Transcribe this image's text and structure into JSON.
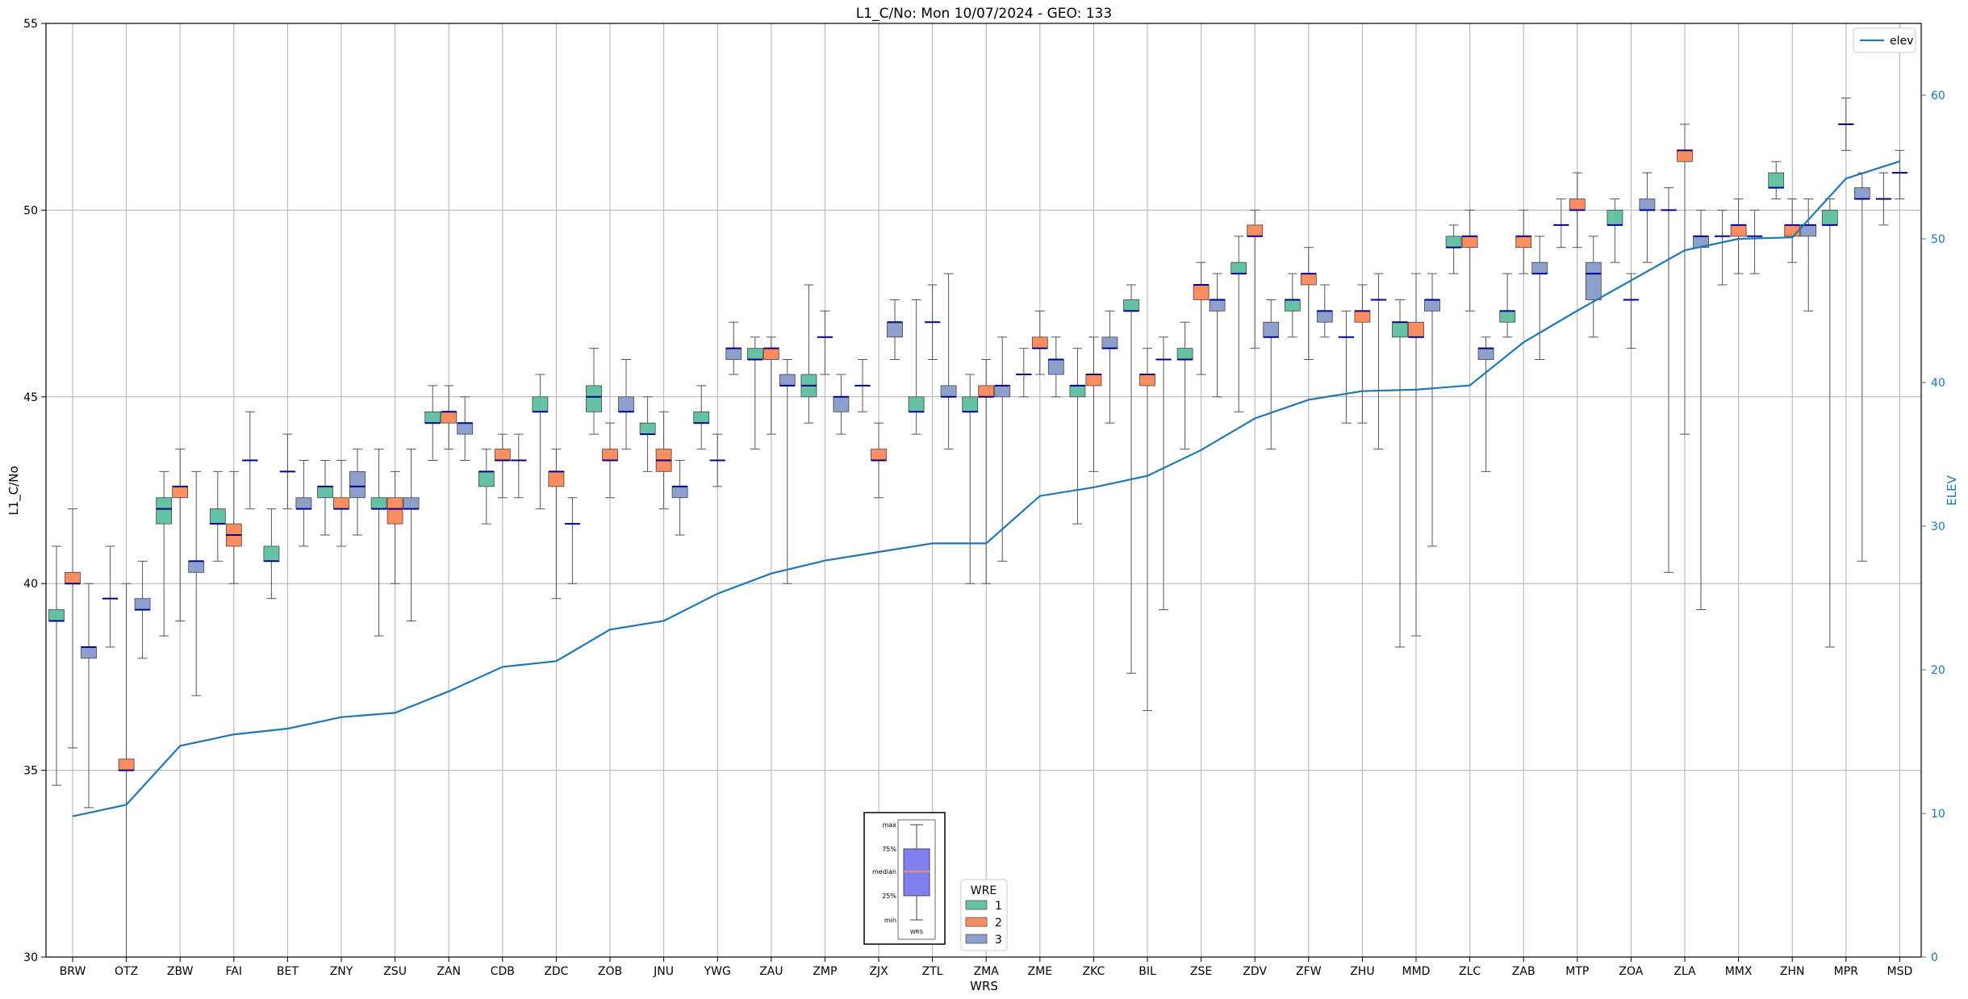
{
  "chart_data": {
    "type": "box",
    "title": "L1_C/No: Mon 10/07/2024 - GEO: 133",
    "xlabel": "WRS",
    "ylabel": "L1_C/No",
    "y2label": "ELEV",
    "ylim": [
      30,
      55
    ],
    "y2lim": [
      0,
      65
    ],
    "yticks": [
      "30",
      "35",
      "40",
      "45",
      "50",
      "55"
    ],
    "y2ticks": [
      "0",
      "10",
      "20",
      "30",
      "40",
      "50",
      "60"
    ],
    "grid": true,
    "categories": [
      "BRW",
      "OTZ",
      "ZBW",
      "FAI",
      "BET",
      "ZNY",
      "ZSU",
      "ZAN",
      "CDB",
      "ZDC",
      "ZOB",
      "JNU",
      "YWG",
      "ZAU",
      "ZMP",
      "ZJX",
      "ZTL",
      "ZMA",
      "ZME",
      "ZKC",
      "BIL",
      "ZSE",
      "ZDV",
      "ZFW",
      "ZHU",
      "MMD",
      "ZLC",
      "ZAB",
      "MTP",
      "ZOA",
      "ZLA",
      "MMX",
      "ZHN",
      "MPR",
      "MSD"
    ],
    "wre_colors": {
      "1": "#66c2a5",
      "2": "#fc8d62",
      "3": "#8da0cb"
    },
    "elev_color": "#1f77b4",
    "median_color": "#00008b",
    "legend_elev": {
      "position": "top-right",
      "label": "elev"
    },
    "legend_wre": {
      "position": "bottom-center",
      "title": "WRE",
      "labels": [
        "1",
        "2",
        "3"
      ]
    },
    "key_labels": [
      "max",
      "75%",
      "median",
      "25%",
      "min",
      "WRS"
    ],
    "elev": [
      9.8,
      10.6,
      14.7,
      15.5,
      15.9,
      16.7,
      17.0,
      18.5,
      20.2,
      20.6,
      22.8,
      23.4,
      25.3,
      26.7,
      27.6,
      28.2,
      28.8,
      28.8,
      32.1,
      32.7,
      33.5,
      35.3,
      37.5,
      38.8,
      39.4,
      39.5,
      39.8,
      42.8,
      45.0,
      47.1,
      49.2,
      50.0,
      50.1,
      54.2,
      55.4
    ],
    "boxes": [
      {
        "wrs": "BRW",
        "wre": 1,
        "min": 34.6,
        "q1": 39.0,
        "median": 39.0,
        "q3": 39.3,
        "max": 41.0
      },
      {
        "wrs": "BRW",
        "wre": 2,
        "min": 35.6,
        "q1": 40.0,
        "median": 40.0,
        "q3": 40.3,
        "max": 42.0
      },
      {
        "wrs": "BRW",
        "wre": 3,
        "min": 34.0,
        "q1": 38.0,
        "median": 38.3,
        "q3": 38.3,
        "max": 40.0
      },
      {
        "wrs": "OTZ",
        "wre": 1,
        "min": 38.3,
        "q1": 39.6,
        "median": 39.6,
        "q3": 39.6,
        "max": 41.0
      },
      {
        "wrs": "OTZ",
        "wre": 2,
        "min": 30.0,
        "q1": 35.0,
        "median": 35.0,
        "q3": 35.3,
        "max": 40.0
      },
      {
        "wrs": "OTZ",
        "wre": 3,
        "min": 38.0,
        "q1": 39.3,
        "median": 39.3,
        "q3": 39.6,
        "max": 40.6
      },
      {
        "wrs": "ZBW",
        "wre": 1,
        "min": 38.6,
        "q1": 41.6,
        "median": 42.0,
        "q3": 42.3,
        "max": 43.0
      },
      {
        "wrs": "ZBW",
        "wre": 2,
        "min": 39.0,
        "q1": 42.3,
        "median": 42.6,
        "q3": 42.6,
        "max": 43.6
      },
      {
        "wrs": "ZBW",
        "wre": 3,
        "min": 37.0,
        "q1": 40.3,
        "median": 40.6,
        "q3": 40.6,
        "max": 43.0
      },
      {
        "wrs": "FAI",
        "wre": 1,
        "min": 40.6,
        "q1": 41.6,
        "median": 41.6,
        "q3": 42.0,
        "max": 43.0
      },
      {
        "wrs": "FAI",
        "wre": 2,
        "min": 40.0,
        "q1": 41.0,
        "median": 41.3,
        "q3": 41.6,
        "max": 43.0
      },
      {
        "wrs": "FAI",
        "wre": 3,
        "min": 42.0,
        "q1": 43.3,
        "median": 43.3,
        "q3": 43.3,
        "max": 44.6
      },
      {
        "wrs": "BET",
        "wre": 1,
        "min": 39.6,
        "q1": 40.6,
        "median": 40.6,
        "q3": 41.0,
        "max": 42.0
      },
      {
        "wrs": "BET",
        "wre": 2,
        "min": 42.0,
        "q1": 43.0,
        "median": 43.0,
        "q3": 43.0,
        "max": 44.0
      },
      {
        "wrs": "BET",
        "wre": 3,
        "min": 41.0,
        "q1": 42.0,
        "median": 42.0,
        "q3": 42.3,
        "max": 43.3
      },
      {
        "wrs": "ZNY",
        "wre": 1,
        "min": 41.3,
        "q1": 42.3,
        "median": 42.6,
        "q3": 42.6,
        "max": 43.3
      },
      {
        "wrs": "ZNY",
        "wre": 2,
        "min": 41.0,
        "q1": 42.0,
        "median": 42.0,
        "q3": 42.3,
        "max": 43.3
      },
      {
        "wrs": "ZNY",
        "wre": 3,
        "min": 41.3,
        "q1": 42.3,
        "median": 42.6,
        "q3": 43.0,
        "max": 43.6
      },
      {
        "wrs": "ZSU",
        "wre": 1,
        "min": 38.6,
        "q1": 42.0,
        "median": 42.0,
        "q3": 42.3,
        "max": 43.6
      },
      {
        "wrs": "ZSU",
        "wre": 2,
        "min": 40.0,
        "q1": 41.6,
        "median": 42.0,
        "q3": 42.3,
        "max": 43.0
      },
      {
        "wrs": "ZSU",
        "wre": 3,
        "min": 39.0,
        "q1": 42.0,
        "median": 42.0,
        "q3": 42.3,
        "max": 43.6
      },
      {
        "wrs": "ZAN",
        "wre": 1,
        "min": 43.3,
        "q1": 44.3,
        "median": 44.3,
        "q3": 44.6,
        "max": 45.3
      },
      {
        "wrs": "ZAN",
        "wre": 2,
        "min": 43.6,
        "q1": 44.3,
        "median": 44.6,
        "q3": 44.6,
        "max": 45.3
      },
      {
        "wrs": "ZAN",
        "wre": 3,
        "min": 43.3,
        "q1": 44.0,
        "median": 44.3,
        "q3": 44.3,
        "max": 45.0
      },
      {
        "wrs": "CDB",
        "wre": 1,
        "min": 41.6,
        "q1": 42.6,
        "median": 43.0,
        "q3": 43.0,
        "max": 43.6
      },
      {
        "wrs": "CDB",
        "wre": 2,
        "min": 42.3,
        "q1": 43.3,
        "median": 43.3,
        "q3": 43.6,
        "max": 44.0
      },
      {
        "wrs": "CDB",
        "wre": 3,
        "min": 42.3,
        "q1": 43.3,
        "median": 43.3,
        "q3": 43.3,
        "max": 44.0
      },
      {
        "wrs": "ZDC",
        "wre": 1,
        "min": 42.0,
        "q1": 44.6,
        "median": 44.6,
        "q3": 45.0,
        "max": 45.6
      },
      {
        "wrs": "ZDC",
        "wre": 2,
        "min": 39.6,
        "q1": 42.6,
        "median": 43.0,
        "q3": 43.0,
        "max": 43.6
      },
      {
        "wrs": "ZDC",
        "wre": 3,
        "min": 40.0,
        "q1": 41.6,
        "median": 41.6,
        "q3": 41.6,
        "max": 42.3
      },
      {
        "wrs": "ZOB",
        "wre": 1,
        "min": 44.0,
        "q1": 44.6,
        "median": 45.0,
        "q3": 45.3,
        "max": 46.3
      },
      {
        "wrs": "ZOB",
        "wre": 2,
        "min": 42.3,
        "q1": 43.3,
        "median": 43.3,
        "q3": 43.6,
        "max": 44.3
      },
      {
        "wrs": "ZOB",
        "wre": 3,
        "min": 43.6,
        "q1": 44.6,
        "median": 44.6,
        "q3": 45.0,
        "max": 46.0
      },
      {
        "wrs": "JNU",
        "wre": 1,
        "min": 43.0,
        "q1": 44.0,
        "median": 44.0,
        "q3": 44.3,
        "max": 45.0
      },
      {
        "wrs": "JNU",
        "wre": 2,
        "min": 42.0,
        "q1": 43.0,
        "median": 43.3,
        "q3": 43.6,
        "max": 44.6
      },
      {
        "wrs": "JNU",
        "wre": 3,
        "min": 41.3,
        "q1": 42.3,
        "median": 42.6,
        "q3": 42.6,
        "max": 43.3
      },
      {
        "wrs": "YWG",
        "wre": 1,
        "min": 43.6,
        "q1": 44.3,
        "median": 44.3,
        "q3": 44.6,
        "max": 45.3
      },
      {
        "wrs": "YWG",
        "wre": 2,
        "min": 42.6,
        "q1": 43.3,
        "median": 43.3,
        "q3": 43.3,
        "max": 44.0
      },
      {
        "wrs": "YWG",
        "wre": 3,
        "min": 45.6,
        "q1": 46.0,
        "median": 46.3,
        "q3": 46.3,
        "max": 47.0
      },
      {
        "wrs": "ZAU",
        "wre": 1,
        "min": 43.6,
        "q1": 46.0,
        "median": 46.0,
        "q3": 46.3,
        "max": 46.6
      },
      {
        "wrs": "ZAU",
        "wre": 2,
        "min": 44.0,
        "q1": 46.0,
        "median": 46.3,
        "q3": 46.3,
        "max": 46.6
      },
      {
        "wrs": "ZAU",
        "wre": 3,
        "min": 40.0,
        "q1": 45.3,
        "median": 45.3,
        "q3": 45.6,
        "max": 46.0
      },
      {
        "wrs": "ZMP",
        "wre": 1,
        "min": 44.3,
        "q1": 45.0,
        "median": 45.3,
        "q3": 45.6,
        "max": 48.0
      },
      {
        "wrs": "ZMP",
        "wre": 2,
        "min": 45.6,
        "q1": 46.6,
        "median": 46.6,
        "q3": 46.6,
        "max": 47.3
      },
      {
        "wrs": "ZMP",
        "wre": 3,
        "min": 44.0,
        "q1": 44.6,
        "median": 45.0,
        "q3": 45.0,
        "max": 45.6
      },
      {
        "wrs": "ZJX",
        "wre": 1,
        "min": 44.6,
        "q1": 45.3,
        "median": 45.3,
        "q3": 45.3,
        "max": 46.0
      },
      {
        "wrs": "ZJX",
        "wre": 2,
        "min": 42.3,
        "q1": 43.3,
        "median": 43.3,
        "q3": 43.6,
        "max": 44.3
      },
      {
        "wrs": "ZJX",
        "wre": 3,
        "min": 46.0,
        "q1": 46.6,
        "median": 47.0,
        "q3": 47.0,
        "max": 47.6
      },
      {
        "wrs": "ZTL",
        "wre": 1,
        "min": 44.0,
        "q1": 44.6,
        "median": 44.6,
        "q3": 45.0,
        "max": 47.6
      },
      {
        "wrs": "ZTL",
        "wre": 2,
        "min": 46.0,
        "q1": 47.0,
        "median": 47.0,
        "q3": 47.0,
        "max": 48.0
      },
      {
        "wrs": "ZTL",
        "wre": 3,
        "min": 43.6,
        "q1": 45.0,
        "median": 45.0,
        "q3": 45.3,
        "max": 48.3
      },
      {
        "wrs": "ZMA",
        "wre": 1,
        "min": 40.0,
        "q1": 44.6,
        "median": 44.6,
        "q3": 45.0,
        "max": 45.6
      },
      {
        "wrs": "ZMA",
        "wre": 2,
        "min": 40.0,
        "q1": 45.0,
        "median": 45.0,
        "q3": 45.3,
        "max": 46.0
      },
      {
        "wrs": "ZMA",
        "wre": 3,
        "min": 40.6,
        "q1": 45.0,
        "median": 45.3,
        "q3": 45.3,
        "max": 46.6
      },
      {
        "wrs": "ZME",
        "wre": 1,
        "min": 45.0,
        "q1": 45.6,
        "median": 45.6,
        "q3": 45.6,
        "max": 46.3
      },
      {
        "wrs": "ZME",
        "wre": 2,
        "min": 45.6,
        "q1": 46.3,
        "median": 46.3,
        "q3": 46.6,
        "max": 47.3
      },
      {
        "wrs": "ZME",
        "wre": 3,
        "min": 45.0,
        "q1": 45.6,
        "median": 46.0,
        "q3": 46.0,
        "max": 46.6
      },
      {
        "wrs": "ZKC",
        "wre": 1,
        "min": 41.6,
        "q1": 45.0,
        "median": 45.3,
        "q3": 45.3,
        "max": 46.3
      },
      {
        "wrs": "ZKC",
        "wre": 2,
        "min": 43.0,
        "q1": 45.3,
        "median": 45.6,
        "q3": 45.6,
        "max": 46.6
      },
      {
        "wrs": "ZKC",
        "wre": 3,
        "min": 44.3,
        "q1": 46.3,
        "median": 46.3,
        "q3": 46.6,
        "max": 47.3
      },
      {
        "wrs": "BIL",
        "wre": 1,
        "min": 37.6,
        "q1": 47.3,
        "median": 47.3,
        "q3": 47.6,
        "max": 48.0
      },
      {
        "wrs": "BIL",
        "wre": 2,
        "min": 36.6,
        "q1": 45.3,
        "median": 45.6,
        "q3": 45.6,
        "max": 46.3
      },
      {
        "wrs": "BIL",
        "wre": 3,
        "min": 39.3,
        "q1": 46.0,
        "median": 46.0,
        "q3": 46.0,
        "max": 46.6
      },
      {
        "wrs": "ZSE",
        "wre": 1,
        "min": 43.6,
        "q1": 46.0,
        "median": 46.0,
        "q3": 46.3,
        "max": 47.0
      },
      {
        "wrs": "ZSE",
        "wre": 2,
        "min": 45.6,
        "q1": 47.6,
        "median": 48.0,
        "q3": 48.0,
        "max": 48.6
      },
      {
        "wrs": "ZSE",
        "wre": 3,
        "min": 45.0,
        "q1": 47.3,
        "median": 47.6,
        "q3": 47.6,
        "max": 48.3
      },
      {
        "wrs": "ZDV",
        "wre": 1,
        "min": 44.6,
        "q1": 48.3,
        "median": 48.3,
        "q3": 48.6,
        "max": 49.3
      },
      {
        "wrs": "ZDV",
        "wre": 2,
        "min": 46.3,
        "q1": 49.3,
        "median": 49.3,
        "q3": 49.6,
        "max": 50.0
      },
      {
        "wrs": "ZDV",
        "wre": 3,
        "min": 43.6,
        "q1": 46.6,
        "median": 46.6,
        "q3": 47.0,
        "max": 47.6
      },
      {
        "wrs": "ZFW",
        "wre": 1,
        "min": 46.6,
        "q1": 47.3,
        "median": 47.6,
        "q3": 47.6,
        "max": 48.3
      },
      {
        "wrs": "ZFW",
        "wre": 2,
        "min": 46.0,
        "q1": 48.0,
        "median": 48.3,
        "q3": 48.3,
        "max": 49.0
      },
      {
        "wrs": "ZFW",
        "wre": 3,
        "min": 46.6,
        "q1": 47.0,
        "median": 47.3,
        "q3": 47.3,
        "max": 48.0
      },
      {
        "wrs": "ZHU",
        "wre": 1,
        "min": 44.3,
        "q1": 46.6,
        "median": 46.6,
        "q3": 46.6,
        "max": 47.3
      },
      {
        "wrs": "ZHU",
        "wre": 2,
        "min": 44.3,
        "q1": 47.0,
        "median": 47.3,
        "q3": 47.3,
        "max": 48.0
      },
      {
        "wrs": "ZHU",
        "wre": 3,
        "min": 43.6,
        "q1": 47.6,
        "median": 47.6,
        "q3": 47.6,
        "max": 48.3
      },
      {
        "wrs": "MMD",
        "wre": 1,
        "min": 38.3,
        "q1": 46.6,
        "median": 47.0,
        "q3": 47.0,
        "max": 47.6
      },
      {
        "wrs": "MMD",
        "wre": 2,
        "min": 38.6,
        "q1": 46.6,
        "median": 46.6,
        "q3": 47.0,
        "max": 48.3
      },
      {
        "wrs": "MMD",
        "wre": 3,
        "min": 41.0,
        "q1": 47.3,
        "median": 47.6,
        "q3": 47.6,
        "max": 48.3
      },
      {
        "wrs": "ZLC",
        "wre": 1,
        "min": 48.3,
        "q1": 49.0,
        "median": 49.0,
        "q3": 49.3,
        "max": 49.6
      },
      {
        "wrs": "ZLC",
        "wre": 2,
        "min": 47.3,
        "q1": 49.0,
        "median": 49.3,
        "q3": 49.3,
        "max": 50.0
      },
      {
        "wrs": "ZLC",
        "wre": 3,
        "min": 43.0,
        "q1": 46.0,
        "median": 46.3,
        "q3": 46.3,
        "max": 46.6
      },
      {
        "wrs": "ZAB",
        "wre": 1,
        "min": 46.6,
        "q1": 47.0,
        "median": 47.3,
        "q3": 47.3,
        "max": 48.3
      },
      {
        "wrs": "ZAB",
        "wre": 2,
        "min": 48.3,
        "q1": 49.0,
        "median": 49.3,
        "q3": 49.3,
        "max": 50.0
      },
      {
        "wrs": "ZAB",
        "wre": 3,
        "min": 46.0,
        "q1": 48.3,
        "median": 48.3,
        "q3": 48.6,
        "max": 49.3
      },
      {
        "wrs": "MTP",
        "wre": 1,
        "min": 49.0,
        "q1": 49.6,
        "median": 49.6,
        "q3": 49.6,
        "max": 50.3
      },
      {
        "wrs": "MTP",
        "wre": 2,
        "min": 49.0,
        "q1": 50.0,
        "median": 50.0,
        "q3": 50.3,
        "max": 51.0
      },
      {
        "wrs": "MTP",
        "wre": 3,
        "min": 46.6,
        "q1": 47.6,
        "median": 48.3,
        "q3": 48.6,
        "max": 49.3
      },
      {
        "wrs": "ZOA",
        "wre": 1,
        "min": 48.6,
        "q1": 49.6,
        "median": 49.6,
        "q3": 50.0,
        "max": 50.3
      },
      {
        "wrs": "ZOA",
        "wre": 2,
        "min": 46.3,
        "q1": 47.6,
        "median": 47.6,
        "q3": 47.6,
        "max": 48.3
      },
      {
        "wrs": "ZOA",
        "wre": 3,
        "min": 48.6,
        "q1": 50.0,
        "median": 50.0,
        "q3": 50.3,
        "max": 51.0
      },
      {
        "wrs": "ZLA",
        "wre": 1,
        "min": 40.3,
        "q1": 50.0,
        "median": 50.0,
        "q3": 50.0,
        "max": 50.6
      },
      {
        "wrs": "ZLA",
        "wre": 2,
        "min": 44.0,
        "q1": 51.3,
        "median": 51.6,
        "q3": 51.6,
        "max": 52.3
      },
      {
        "wrs": "ZLA",
        "wre": 3,
        "min": 39.3,
        "q1": 49.0,
        "median": 49.3,
        "q3": 49.3,
        "max": 50.0
      },
      {
        "wrs": "MMX",
        "wre": 1,
        "min": 48.0,
        "q1": 49.3,
        "median": 49.3,
        "q3": 49.3,
        "max": 50.0
      },
      {
        "wrs": "MMX",
        "wre": 2,
        "min": 48.3,
        "q1": 49.3,
        "median": 49.6,
        "q3": 49.6,
        "max": 50.3
      },
      {
        "wrs": "MMX",
        "wre": 3,
        "min": 48.3,
        "q1": 49.3,
        "median": 49.3,
        "q3": 49.3,
        "max": 50.0
      },
      {
        "wrs": "ZHN",
        "wre": 1,
        "min": 50.3,
        "q1": 50.6,
        "median": 50.6,
        "q3": 51.0,
        "max": 51.3
      },
      {
        "wrs": "ZHN",
        "wre": 2,
        "min": 48.6,
        "q1": 49.3,
        "median": 49.6,
        "q3": 49.6,
        "max": 50.3
      },
      {
        "wrs": "ZHN",
        "wre": 3,
        "min": 47.3,
        "q1": 49.3,
        "median": 49.6,
        "q3": 49.6,
        "max": 50.3
      },
      {
        "wrs": "MPR",
        "wre": 1,
        "min": 38.3,
        "q1": 49.6,
        "median": 49.6,
        "q3": 50.0,
        "max": 50.3
      },
      {
        "wrs": "MPR",
        "wre": 2,
        "min": 51.6,
        "q1": 52.3,
        "median": 52.3,
        "q3": 52.3,
        "max": 53.0
      },
      {
        "wrs": "MPR",
        "wre": 3,
        "min": 40.6,
        "q1": 50.3,
        "median": 50.3,
        "q3": 50.6,
        "max": 51.0
      },
      {
        "wrs": "MSD",
        "wre": 1,
        "min": 49.6,
        "q1": 50.3,
        "median": 50.3,
        "q3": 50.3,
        "max": 51.0
      },
      {
        "wrs": "MSD",
        "wre": 2,
        "min": 50.3,
        "q1": 51.0,
        "median": 51.0,
        "q3": 51.0,
        "max": 51.6
      }
    ]
  }
}
